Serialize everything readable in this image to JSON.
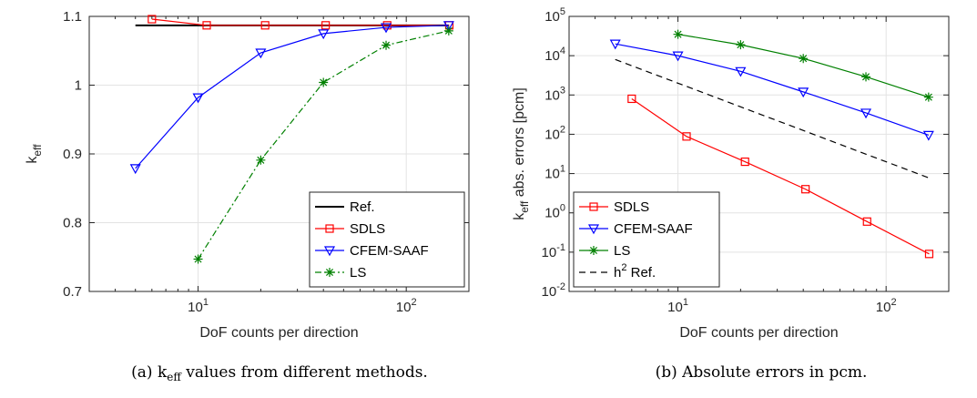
{
  "chart_data": [
    {
      "type": "line",
      "xlabel": "DoF counts per direction",
      "ylabel_main": "k",
      "ylabel_sub": "eff",
      "xscale": "log",
      "xlim": [
        3,
        200
      ],
      "ylim": [
        0.7,
        1.1
      ],
      "yticks": [
        0.7,
        0.8,
        0.9,
        1,
        1.1
      ],
      "ytick_labels": [
        "0.7",
        "0.8",
        "0.9",
        "1",
        "1.1"
      ],
      "xticks": [
        {
          "base": "10",
          "exp": "1",
          "value": 10
        },
        {
          "base": "10",
          "exp": "2",
          "value": 100
        }
      ],
      "legend_position": "bottom-right",
      "series": [
        {
          "name": "Ref.",
          "color": "#000000",
          "marker": "none",
          "dash": "solid",
          "x": [
            5,
            160
          ],
          "y": [
            1.087,
            1.087
          ]
        },
        {
          "name": "SDLS",
          "color": "#ff0000",
          "marker": "square",
          "dash": "solid",
          "x": [
            6,
            11,
            21,
            41,
            81,
            161
          ],
          "y": [
            1.096,
            1.087,
            1.087,
            1.087,
            1.087,
            1.087
          ]
        },
        {
          "name": "CFEM-SAAF",
          "color": "#0000ff",
          "marker": "triangle-down",
          "dash": "solid",
          "x": [
            5,
            10,
            20,
            40,
            80,
            160
          ],
          "y": [
            0.879,
            0.982,
            1.047,
            1.075,
            1.084,
            1.087
          ]
        },
        {
          "name": "LS",
          "color": "#008000",
          "marker": "asterisk",
          "dash": "dashdot",
          "x": [
            10,
            20,
            40,
            80,
            160
          ],
          "y": [
            0.747,
            0.891,
            1.004,
            1.058,
            1.079
          ]
        }
      ],
      "caption": "(a) k",
      "caption_sub": "eff",
      "caption_rest": " values from different methods."
    },
    {
      "type": "line",
      "xlabel": "DoF counts per direction",
      "ylabel_main": "k",
      "ylabel_sub": "eff",
      "ylabel_rest": " abs. errors [pcm]",
      "xscale": "log",
      "yscale": "log",
      "xlim": [
        3,
        200
      ],
      "ylim": [
        0.01,
        100000
      ],
      "yticks": [
        {
          "base": "10",
          "exp": "-2",
          "value": 0.01
        },
        {
          "base": "10",
          "exp": "-1",
          "value": 0.1
        },
        {
          "base": "10",
          "exp": "0",
          "value": 1
        },
        {
          "base": "10",
          "exp": "1",
          "value": 10
        },
        {
          "base": "10",
          "exp": "2",
          "value": 100
        },
        {
          "base": "10",
          "exp": "3",
          "value": 1000
        },
        {
          "base": "10",
          "exp": "4",
          "value": 10000
        },
        {
          "base": "10",
          "exp": "5",
          "value": 100000
        }
      ],
      "xticks": [
        {
          "base": "10",
          "exp": "1",
          "value": 10
        },
        {
          "base": "10",
          "exp": "2",
          "value": 100
        }
      ],
      "legend_position": "bottom-left",
      "series": [
        {
          "name": "SDLS",
          "color": "#ff0000",
          "marker": "square",
          "dash": "solid",
          "x": [
            6,
            11,
            21,
            41,
            81,
            161
          ],
          "y": [
            800,
            88,
            20,
            4,
            0.6,
            0.09
          ]
        },
        {
          "name": "CFEM-SAAF",
          "color": "#0000ff",
          "marker": "triangle-down",
          "dash": "solid",
          "x": [
            5,
            10,
            20,
            40,
            80,
            160
          ],
          "y": [
            20000,
            10000,
            4000,
            1200,
            350,
            95
          ]
        },
        {
          "name": "LS",
          "color": "#008000",
          "marker": "asterisk",
          "dash": "solid",
          "x": [
            10,
            20,
            40,
            80,
            160
          ],
          "y": [
            35000,
            19000,
            8500,
            2900,
            880
          ]
        },
        {
          "name": "h",
          "name_sup": "2",
          "name_rest": " Ref.",
          "color": "#000000",
          "marker": "none",
          "dash": "dashed",
          "x": [
            5,
            160
          ],
          "y": [
            8000,
            7.8
          ]
        }
      ],
      "caption": "(b) Absolute errors in pcm."
    }
  ]
}
